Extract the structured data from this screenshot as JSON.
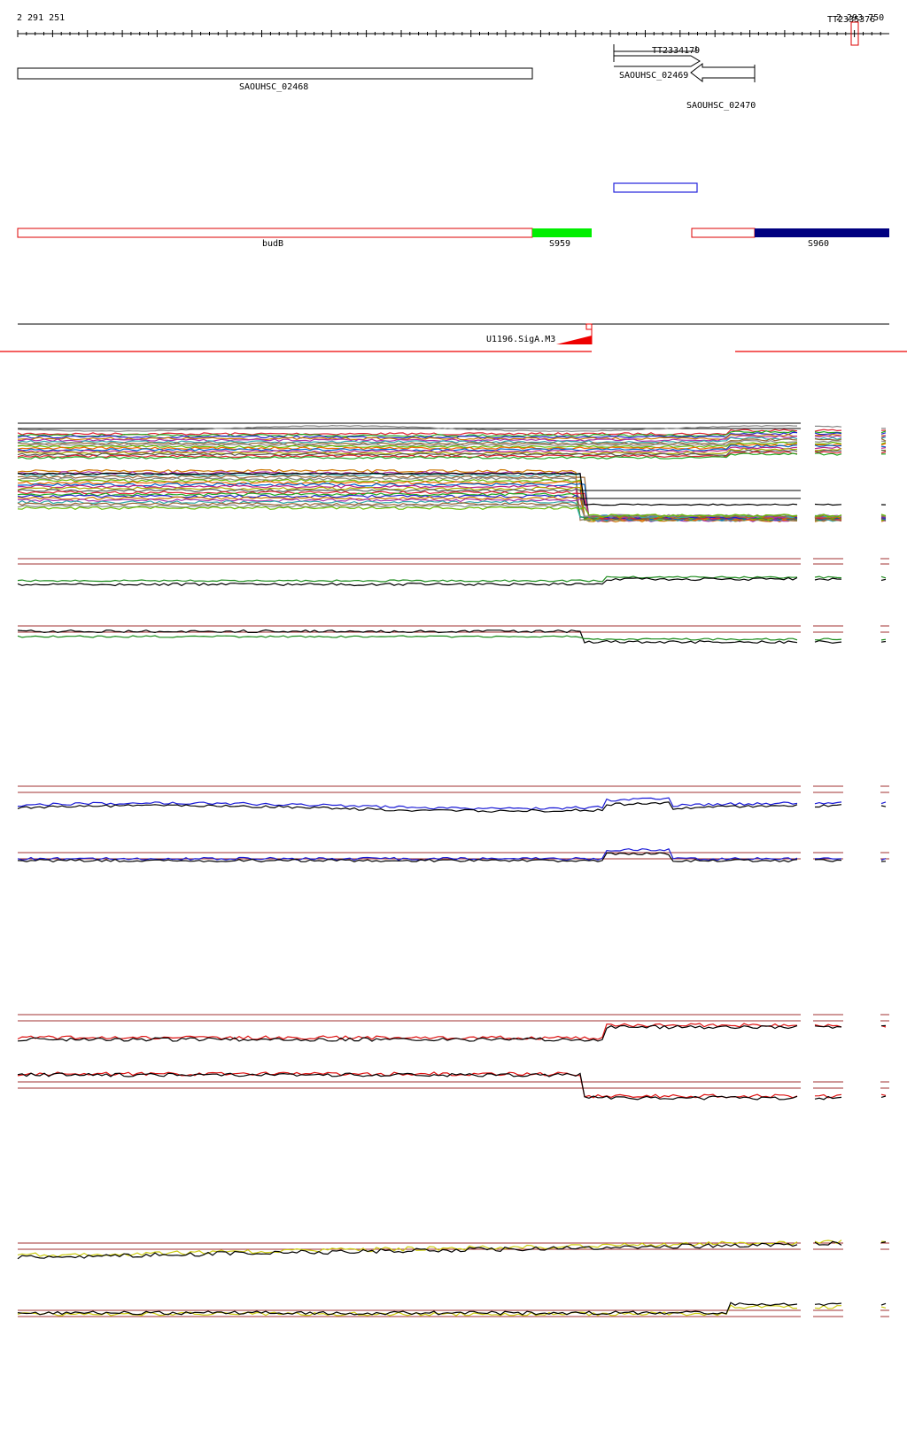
{
  "ruler": {
    "start_label": "2 291 251",
    "end_label": "2 293 750",
    "terminator_label": "TT2335376"
  },
  "features": {
    "gene_left_label": "SAOUHSC_02468",
    "gene_mid_label": "SAOUHSC_02469",
    "gene_right_label": "SAOUHSC_02470",
    "terminator_mid_label": "TT2334179"
  },
  "segments": {
    "budB_label": "budB",
    "s959_label": "S959",
    "s960_label": "S960",
    "s959_color": "#00ee00",
    "s960_color": "#000080",
    "outline_color": "#dd0000",
    "box_color": "#2222dd"
  },
  "promoter": {
    "label": "U1196.SigA.M3",
    "color": "#ee0000"
  },
  "track_colors": {
    "black": "#000000",
    "green": "#1a8a1a",
    "blue": "#1a1ad6",
    "red": "#dd1111",
    "yellow": "#cccc11",
    "gray": "#888888",
    "baseline": "#a03030"
  }
}
